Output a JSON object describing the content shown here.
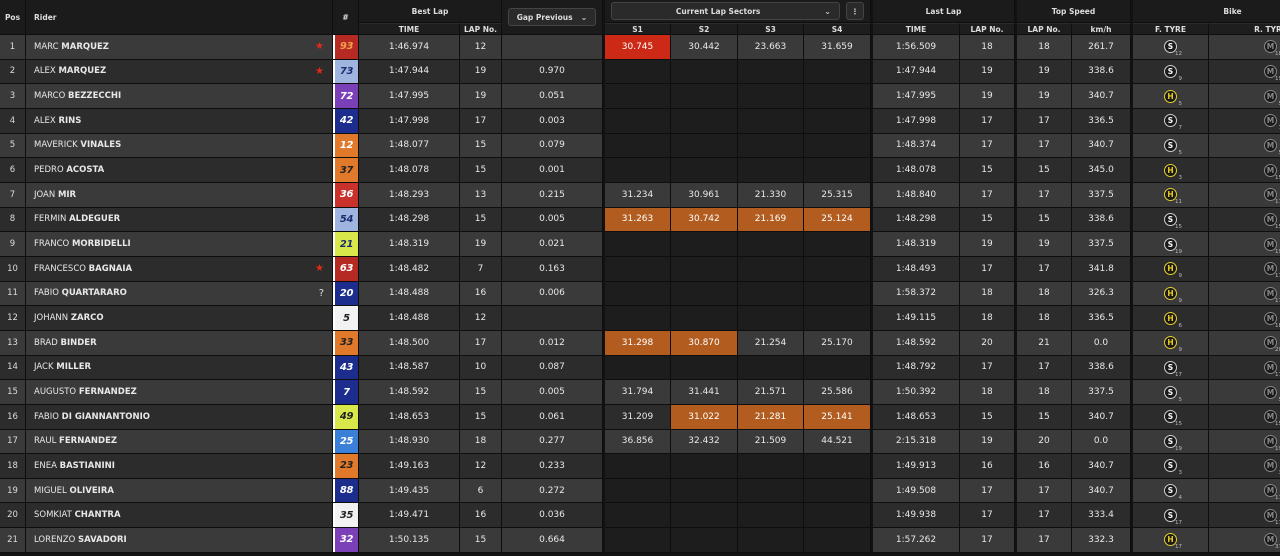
{
  "header": {
    "pos": "Pos",
    "rider": "Rider",
    "number": "#",
    "best_lap": "Best Lap",
    "gap_previous": "Gap Previous",
    "current_lap_sectors": "Current Lap Sectors",
    "last_lap": "Last Lap",
    "top_speed": "Top Speed",
    "bike": "Bike"
  },
  "subheader": {
    "time": "TIME",
    "lap_no": "LAP No.",
    "s1": "S1",
    "s2": "S2",
    "s3": "S3",
    "s4": "S4",
    "last_time": "TIME",
    "last_lap_no": "LAP No.",
    "ts_lap_no": "LAP No.",
    "kmh": "km/h",
    "f_tyre": "F. TYRE",
    "r_tyre": "R. TYRE"
  },
  "icons": {
    "dropdown": "chevron-down-icon",
    "more": "more-vertical-icon",
    "flag": "star-icon"
  },
  "colors": {
    "fastest_sector": "#cc2a16",
    "personal_sector": "#b25c1f",
    "hard_tyre": "#e8d028",
    "soft_tyre": "#cfcfcf",
    "medium_tyre": "#888888"
  },
  "riders": [
    {
      "pos": "1",
      "first": "MARC",
      "last": "MARQUEZ",
      "flag": "★",
      "num": "93",
      "num_bg": "#b52a22",
      "num_color": "#f5a34a",
      "best_time": "1:46.974",
      "best_lap": "12",
      "gap": "",
      "s1": "30.745",
      "s2": "30.442",
      "s3": "23.663",
      "s4": "31.659",
      "last_time": "1:56.509",
      "last_lap": "18",
      "ts_lap": "18",
      "kmh": "261.7",
      "ft": "S",
      "ft_n": "12",
      "rt": "M",
      "rt_n": "18",
      "red": [
        "s1"
      ],
      "orange": []
    },
    {
      "pos": "2",
      "first": "ALEX",
      "last": "MARQUEZ",
      "flag": "★",
      "num": "73",
      "num_bg": "#a0b4e0",
      "num_color": "#1c2d6e",
      "best_time": "1:47.944",
      "best_lap": "19",
      "gap": "0.970",
      "s1": "",
      "s2": "",
      "s3": "",
      "s4": "",
      "last_time": "1:47.944",
      "last_lap": "19",
      "ts_lap": "19",
      "kmh": "338.6",
      "ft": "S",
      "ft_n": "9",
      "rt": "M",
      "rt_n": "19",
      "red": [],
      "orange": []
    },
    {
      "pos": "3",
      "first": "MARCO",
      "last": "BEZZECCHI",
      "flag": "",
      "num": "72",
      "num_bg": "#7b3fb8",
      "num_color": "#ffffff",
      "best_time": "1:47.995",
      "best_lap": "19",
      "gap": "0.051",
      "s1": "",
      "s2": "",
      "s3": "",
      "s4": "",
      "last_time": "1:47.995",
      "last_lap": "19",
      "ts_lap": "19",
      "kmh": "340.7",
      "ft": "H",
      "ft_n": "5",
      "rt": "M",
      "rt_n": "5",
      "red": [],
      "orange": []
    },
    {
      "pos": "4",
      "first": "ALEX",
      "last": "RINS",
      "flag": "",
      "num": "42",
      "num_bg": "#1c2d8e",
      "num_color": "#ffffff",
      "best_time": "1:47.998",
      "best_lap": "17",
      "gap": "0.003",
      "s1": "",
      "s2": "",
      "s3": "",
      "s4": "",
      "last_time": "1:47.998",
      "last_lap": "17",
      "ts_lap": "17",
      "kmh": "336.5",
      "ft": "S",
      "ft_n": "7",
      "rt": "M",
      "rt_n": "7",
      "red": [],
      "orange": []
    },
    {
      "pos": "5",
      "first": "MAVERICK",
      "last": "VINALES",
      "flag": "",
      "num": "12",
      "num_bg": "#e07a2a",
      "num_color": "#ffffff",
      "best_time": "1:48.077",
      "best_lap": "15",
      "gap": "0.079",
      "s1": "",
      "s2": "",
      "s3": "",
      "s4": "",
      "last_time": "1:48.374",
      "last_lap": "17",
      "ts_lap": "17",
      "kmh": "340.7",
      "ft": "S",
      "ft_n": "5",
      "rt": "M",
      "rt_n": "5",
      "red": [],
      "orange": []
    },
    {
      "pos": "6",
      "first": "PEDRO",
      "last": "ACOSTA",
      "flag": "",
      "num": "37",
      "num_bg": "#e07a2a",
      "num_color": "#222222",
      "best_time": "1:48.078",
      "best_lap": "15",
      "gap": "0.001",
      "s1": "",
      "s2": "",
      "s3": "",
      "s4": "",
      "last_time": "1:48.078",
      "last_lap": "15",
      "ts_lap": "15",
      "kmh": "345.0",
      "ft": "H",
      "ft_n": "3",
      "rt": "M",
      "rt_n": "15",
      "red": [],
      "orange": []
    },
    {
      "pos": "7",
      "first": "JOAN",
      "last": "MIR",
      "flag": "",
      "num": "36",
      "num_bg": "#c8322a",
      "num_color": "#ffffff",
      "best_time": "1:48.293",
      "best_lap": "13",
      "gap": "0.215",
      "s1": "31.234",
      "s2": "30.961",
      "s3": "21.330",
      "s4": "25.315",
      "last_time": "1:48.840",
      "last_lap": "17",
      "ts_lap": "17",
      "kmh": "337.5",
      "ft": "H",
      "ft_n": "11",
      "rt": "M",
      "rt_n": "17",
      "red": [],
      "orange": []
    },
    {
      "pos": "8",
      "first": "FERMIN",
      "last": "ALDEGUER",
      "flag": "",
      "num": "54",
      "num_bg": "#a0b4e0",
      "num_color": "#1c2d6e",
      "best_time": "1:48.298",
      "best_lap": "15",
      "gap": "0.005",
      "s1": "31.263",
      "s2": "30.742",
      "s3": "21.169",
      "s4": "25.124",
      "last_time": "1:48.298",
      "last_lap": "15",
      "ts_lap": "15",
      "kmh": "338.6",
      "ft": "S",
      "ft_n": "15",
      "rt": "M",
      "rt_n": "15",
      "red": [],
      "orange": [
        "s1",
        "s2",
        "s3",
        "s4"
      ]
    },
    {
      "pos": "9",
      "first": "FRANCO",
      "last": "MORBIDELLI",
      "flag": "",
      "num": "21",
      "num_bg": "#d8e84a",
      "num_color": "#1c2d6e",
      "best_time": "1:48.319",
      "best_lap": "19",
      "gap": "0.021",
      "s1": "",
      "s2": "",
      "s3": "",
      "s4": "",
      "last_time": "1:48.319",
      "last_lap": "19",
      "ts_lap": "19",
      "kmh": "337.5",
      "ft": "S",
      "ft_n": "19",
      "rt": "M",
      "rt_n": "19",
      "red": [],
      "orange": []
    },
    {
      "pos": "10",
      "first": "FRANCESCO",
      "last": "BAGNAIA",
      "flag": "★",
      "num": "63",
      "num_bg": "#b52a22",
      "num_color": "#ffffff",
      "best_time": "1:48.482",
      "best_lap": "7",
      "gap": "0.163",
      "s1": "",
      "s2": "",
      "s3": "",
      "s4": "",
      "last_time": "1:48.493",
      "last_lap": "17",
      "ts_lap": "17",
      "kmh": "341.8",
      "ft": "H",
      "ft_n": "9",
      "rt": "M",
      "rt_n": "17",
      "red": [],
      "orange": []
    },
    {
      "pos": "11",
      "first": "FABIO",
      "last": "QUARTARARO",
      "flag": "?",
      "num": "20",
      "num_bg": "#1c2d8e",
      "num_color": "#ffffff",
      "best_time": "1:48.488",
      "best_lap": "16",
      "gap": "0.006",
      "s1": "",
      "s2": "",
      "s3": "",
      "s4": "",
      "last_time": "1:58.372",
      "last_lap": "18",
      "ts_lap": "18",
      "kmh": "326.3",
      "ft": "H",
      "ft_n": "9",
      "rt": "M",
      "rt_n": "17",
      "red": [],
      "orange": []
    },
    {
      "pos": "12",
      "first": "JOHANN",
      "last": "ZARCO",
      "flag": "",
      "num": "5",
      "num_bg": "#f2f2f2",
      "num_color": "#222222",
      "best_time": "1:48.488",
      "best_lap": "12",
      "gap": "",
      "s1": "",
      "s2": "",
      "s3": "",
      "s4": "",
      "last_time": "1:49.115",
      "last_lap": "18",
      "ts_lap": "18",
      "kmh": "336.5",
      "ft": "H",
      "ft_n": "6",
      "rt": "M",
      "rt_n": "18",
      "red": [],
      "orange": []
    },
    {
      "pos": "13",
      "first": "BRAD",
      "last": "BINDER",
      "flag": "",
      "num": "33",
      "num_bg": "#e07a2a",
      "num_color": "#222222",
      "best_time": "1:48.500",
      "best_lap": "17",
      "gap": "0.012",
      "s1": "31.298",
      "s2": "30.870",
      "s3": "21.254",
      "s4": "25.170",
      "last_time": "1:48.592",
      "last_lap": "20",
      "ts_lap": "21",
      "kmh": "0.0",
      "ft": "H",
      "ft_n": "9",
      "rt": "M",
      "rt_n": "20",
      "red": [],
      "orange": [
        "s1",
        "s2"
      ]
    },
    {
      "pos": "14",
      "first": "JACK",
      "last": "MILLER",
      "flag": "",
      "num": "43",
      "num_bg": "#1c2d8e",
      "num_color": "#ffffff",
      "best_time": "1:48.587",
      "best_lap": "10",
      "gap": "0.087",
      "s1": "",
      "s2": "",
      "s3": "",
      "s4": "",
      "last_time": "1:48.792",
      "last_lap": "17",
      "ts_lap": "17",
      "kmh": "338.6",
      "ft": "S",
      "ft_n": "17",
      "rt": "M",
      "rt_n": "17",
      "red": [],
      "orange": []
    },
    {
      "pos": "15",
      "first": "AUGUSTO",
      "last": "FERNANDEZ",
      "flag": "",
      "num": "7",
      "num_bg": "#1c2d8e",
      "num_color": "#ffffff",
      "best_time": "1:48.592",
      "best_lap": "15",
      "gap": "0.005",
      "s1": "31.794",
      "s2": "31.441",
      "s3": "21.571",
      "s4": "25.586",
      "last_time": "1:50.392",
      "last_lap": "18",
      "ts_lap": "18",
      "kmh": "337.5",
      "ft": "S",
      "ft_n": "5",
      "rt": "M",
      "rt_n": "5",
      "red": [],
      "orange": []
    },
    {
      "pos": "16",
      "first": "FABIO",
      "last": "DI GIANNANTONIO",
      "flag": "",
      "num": "49",
      "num_bg": "#d8e84a",
      "num_color": "#222222",
      "best_time": "1:48.653",
      "best_lap": "15",
      "gap": "0.061",
      "s1": "31.209",
      "s2": "31.022",
      "s3": "21.281",
      "s4": "25.141",
      "last_time": "1:48.653",
      "last_lap": "15",
      "ts_lap": "15",
      "kmh": "340.7",
      "ft": "S",
      "ft_n": "15",
      "rt": "M",
      "rt_n": "15",
      "red": [],
      "orange": [
        "s2",
        "s3",
        "s4"
      ]
    },
    {
      "pos": "17",
      "first": "RAUL",
      "last": "FERNANDEZ",
      "flag": "",
      "num": "25",
      "num_bg": "#3a7fd8",
      "num_color": "#ffffff",
      "best_time": "1:48.930",
      "best_lap": "18",
      "gap": "0.277",
      "s1": "36.856",
      "s2": "32.432",
      "s3": "21.509",
      "s4": "44.521",
      "last_time": "2:15.318",
      "last_lap": "19",
      "ts_lap": "20",
      "kmh": "0.0",
      "ft": "S",
      "ft_n": "19",
      "rt": "M",
      "rt_n": "19",
      "red": [],
      "orange": []
    },
    {
      "pos": "18",
      "first": "ENEA",
      "last": "BASTIANINI",
      "flag": "",
      "num": "23",
      "num_bg": "#e07a2a",
      "num_color": "#222222",
      "best_time": "1:49.163",
      "best_lap": "12",
      "gap": "0.233",
      "s1": "",
      "s2": "",
      "s3": "",
      "s4": "",
      "last_time": "1:49.913",
      "last_lap": "16",
      "ts_lap": "16",
      "kmh": "340.7",
      "ft": "S",
      "ft_n": "3",
      "rt": "M",
      "rt_n": "3",
      "red": [],
      "orange": []
    },
    {
      "pos": "19",
      "first": "MIGUEL",
      "last": "OLIVEIRA",
      "flag": "",
      "num": "88",
      "num_bg": "#1c2d8e",
      "num_color": "#ffffff",
      "best_time": "1:49.435",
      "best_lap": "6",
      "gap": "0.272",
      "s1": "",
      "s2": "",
      "s3": "",
      "s4": "",
      "last_time": "1:49.508",
      "last_lap": "17",
      "ts_lap": "17",
      "kmh": "340.7",
      "ft": "S",
      "ft_n": "4",
      "rt": "M",
      "rt_n": "17",
      "red": [],
      "orange": []
    },
    {
      "pos": "20",
      "first": "SOMKIAT",
      "last": "CHANTRA",
      "flag": "",
      "num": "35",
      "num_bg": "#f2f2f2",
      "num_color": "#222222",
      "best_time": "1:49.471",
      "best_lap": "16",
      "gap": "0.036",
      "s1": "",
      "s2": "",
      "s3": "",
      "s4": "",
      "last_time": "1:49.938",
      "last_lap": "17",
      "ts_lap": "17",
      "kmh": "333.4",
      "ft": "S",
      "ft_n": "17",
      "rt": "M",
      "rt_n": "17",
      "red": [],
      "orange": []
    },
    {
      "pos": "21",
      "first": "LORENZO",
      "last": "SAVADORI",
      "flag": "",
      "num": "32",
      "num_bg": "#7b3fb8",
      "num_color": "#ffffff",
      "best_time": "1:50.135",
      "best_lap": "15",
      "gap": "0.664",
      "s1": "",
      "s2": "",
      "s3": "",
      "s4": "",
      "last_time": "1:57.262",
      "last_lap": "17",
      "ts_lap": "17",
      "kmh": "332.3",
      "ft": "H",
      "ft_n": "17",
      "rt": "M",
      "rt_n": "37",
      "red": [],
      "orange": []
    }
  ]
}
